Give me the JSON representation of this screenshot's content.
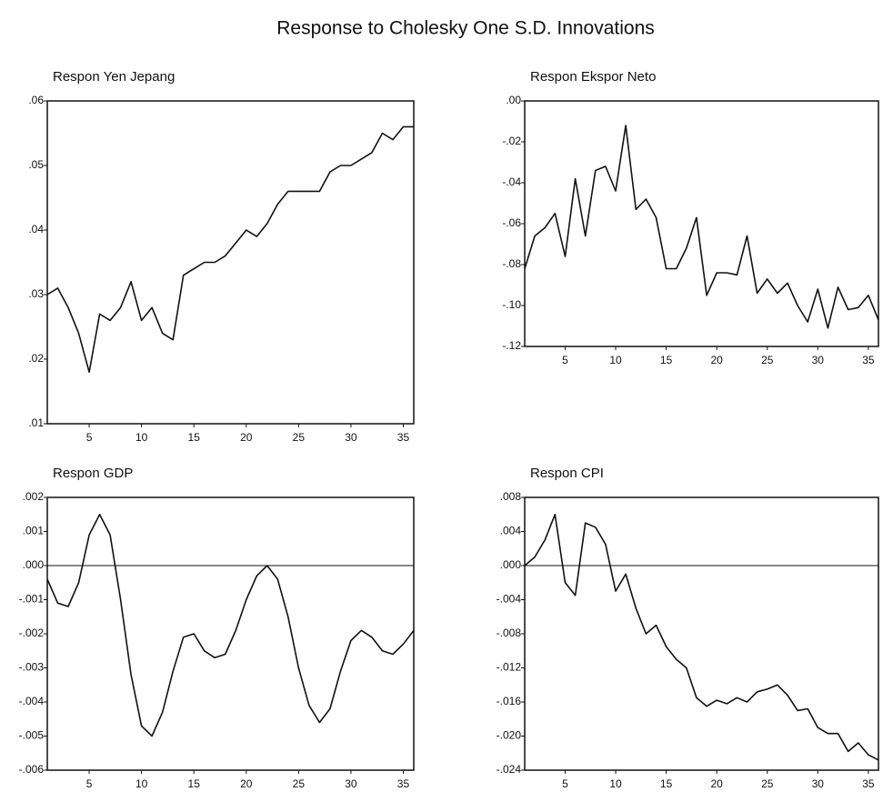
{
  "title": "Response to Cholesky One S.D. Innovations",
  "chart_data": [
    {
      "type": "line",
      "title": "Respon Yen Jepang",
      "x": [
        1,
        2,
        3,
        4,
        5,
        6,
        7,
        8,
        9,
        10,
        11,
        12,
        13,
        14,
        15,
        16,
        17,
        18,
        19,
        20,
        21,
        22,
        23,
        24,
        25,
        26,
        27,
        28,
        29,
        30,
        31,
        32,
        33,
        34,
        35,
        36
      ],
      "series": [
        {
          "color": "#111111",
          "values": [
            0.03,
            0.031,
            0.028,
            0.024,
            0.018,
            0.027,
            0.026,
            0.028,
            0.032,
            0.026,
            0.028,
            0.024,
            0.023,
            0.033,
            0.034,
            0.035,
            0.035,
            0.036,
            0.038,
            0.04,
            0.039,
            0.041,
            0.044,
            0.046,
            0.046,
            0.046,
            0.046,
            0.049,
            0.05,
            0.05,
            0.051,
            0.052,
            0.055,
            0.054,
            0.056,
            0.056
          ]
        }
      ],
      "xlim": [
        1,
        36
      ],
      "xticks": [
        5,
        10,
        15,
        20,
        25,
        30,
        35
      ],
      "ylim": [
        0.01,
        0.06
      ],
      "yticks": [
        {
          "value": 0.01,
          "label": ".01"
        },
        {
          "value": 0.02,
          "label": ".02"
        },
        {
          "value": 0.03,
          "label": ".03"
        },
        {
          "value": 0.04,
          "label": ".04"
        },
        {
          "value": 0.05,
          "label": ".05"
        },
        {
          "value": 0.06,
          "label": ".06"
        }
      ],
      "zero_line": false
    },
    {
      "type": "line",
      "title": "Respon Ekspor Neto",
      "x": [
        1,
        2,
        3,
        4,
        5,
        6,
        7,
        8,
        9,
        10,
        11,
        12,
        13,
        14,
        15,
        16,
        17,
        18,
        19,
        20,
        21,
        22,
        23,
        24,
        25,
        26,
        27,
        28,
        29,
        30,
        31,
        32,
        33,
        34,
        35,
        36
      ],
      "series": [
        {
          "color": "#111111",
          "values": [
            -0.082,
            -0.066,
            -0.062,
            -0.055,
            -0.076,
            -0.038,
            -0.066,
            -0.034,
            -0.032,
            -0.044,
            -0.012,
            -0.053,
            -0.048,
            -0.057,
            -0.082,
            -0.082,
            -0.072,
            -0.057,
            -0.095,
            -0.084,
            -0.084,
            -0.085,
            -0.066,
            -0.094,
            -0.087,
            -0.094,
            -0.089,
            -0.1,
            -0.108,
            -0.092,
            -0.111,
            -0.091,
            -0.102,
            -0.101,
            -0.095,
            -0.107
          ]
        }
      ],
      "xlim": [
        1,
        36
      ],
      "xticks": [
        5,
        10,
        15,
        20,
        25,
        30,
        35
      ],
      "ylim": [
        -0.12,
        0
      ],
      "yticks": [
        {
          "value": -0.12,
          "label": "-.12"
        },
        {
          "value": -0.1,
          "label": "-.10"
        },
        {
          "value": -0.08,
          "label": "-.08"
        },
        {
          "value": -0.06,
          "label": "-.06"
        },
        {
          "value": -0.04,
          "label": "-.04"
        },
        {
          "value": -0.02,
          "label": "-.02"
        },
        {
          "value": 0,
          "label": ".00"
        }
      ],
      "zero_line": false
    },
    {
      "type": "line",
      "title": "Respon GDP",
      "x": [
        1,
        2,
        3,
        4,
        5,
        6,
        7,
        8,
        9,
        10,
        11,
        12,
        13,
        14,
        15,
        16,
        17,
        18,
        19,
        20,
        21,
        22,
        23,
        24,
        25,
        26,
        27,
        28,
        29,
        30,
        31,
        32,
        33,
        34,
        35,
        36
      ],
      "series": [
        {
          "color": "#111111",
          "values": [
            -0.0004,
            -0.0011,
            -0.0012,
            -0.0005,
            0.0009,
            0.0015,
            0.0009,
            -0.001,
            -0.0032,
            -0.0047,
            -0.005,
            -0.0043,
            -0.0031,
            -0.0021,
            -0.002,
            -0.0025,
            -0.0027,
            -0.0026,
            -0.0019,
            -0.001,
            -0.0003,
            0.0,
            -0.0004,
            -0.0015,
            -0.003,
            -0.0041,
            -0.0046,
            -0.0042,
            -0.0031,
            -0.0022,
            -0.0019,
            -0.0021,
            -0.0025,
            -0.0026,
            -0.0023,
            -0.0019
          ]
        }
      ],
      "xlim": [
        1,
        36
      ],
      "xticks": [
        5,
        10,
        15,
        20,
        25,
        30,
        35
      ],
      "ylim": [
        -0.006,
        0.002
      ],
      "yticks": [
        {
          "value": -0.006,
          "label": "-.006"
        },
        {
          "value": -0.005,
          "label": "-.005"
        },
        {
          "value": -0.004,
          "label": "-.004"
        },
        {
          "value": -0.003,
          "label": "-.003"
        },
        {
          "value": -0.002,
          "label": "-.002"
        },
        {
          "value": -0.001,
          "label": "-.001"
        },
        {
          "value": 0,
          "label": ".000"
        },
        {
          "value": 0.001,
          "label": ".001"
        },
        {
          "value": 0.002,
          "label": ".002"
        }
      ],
      "zero_line": true
    },
    {
      "type": "line",
      "title": "Respon CPI",
      "x": [
        1,
        2,
        3,
        4,
        5,
        6,
        7,
        8,
        9,
        10,
        11,
        12,
        13,
        14,
        15,
        16,
        17,
        18,
        19,
        20,
        21,
        22,
        23,
        24,
        25,
        26,
        27,
        28,
        29,
        30,
        31,
        32,
        33,
        34,
        35,
        36
      ],
      "series": [
        {
          "color": "#111111",
          "values": [
            0.0,
            0.001,
            0.003,
            0.006,
            -0.002,
            -0.0035,
            0.005,
            0.0045,
            0.0025,
            -0.003,
            -0.001,
            -0.005,
            -0.008,
            -0.007,
            -0.0095,
            -0.011,
            -0.012,
            -0.0155,
            -0.0165,
            -0.0158,
            -0.0162,
            -0.0155,
            -0.016,
            -0.0148,
            -0.0145,
            -0.014,
            -0.0152,
            -0.017,
            -0.0168,
            -0.019,
            -0.0197,
            -0.0197,
            -0.0218,
            -0.0208,
            -0.0222,
            -0.0228
          ]
        }
      ],
      "xlim": [
        1,
        36
      ],
      "xticks": [
        5,
        10,
        15,
        20,
        25,
        30,
        35
      ],
      "ylim": [
        -0.024,
        0.008
      ],
      "yticks": [
        {
          "value": -0.024,
          "label": "-.024"
        },
        {
          "value": -0.02,
          "label": "-.020"
        },
        {
          "value": -0.016,
          "label": "-.016"
        },
        {
          "value": -0.012,
          "label": "-.012"
        },
        {
          "value": -0.008,
          "label": "-.008"
        },
        {
          "value": -0.004,
          "label": "-.004"
        },
        {
          "value": 0,
          "label": ".000"
        },
        {
          "value": 0.004,
          "label": ".004"
        },
        {
          "value": 0.008,
          "label": ".008"
        }
      ],
      "zero_line": true
    }
  ]
}
